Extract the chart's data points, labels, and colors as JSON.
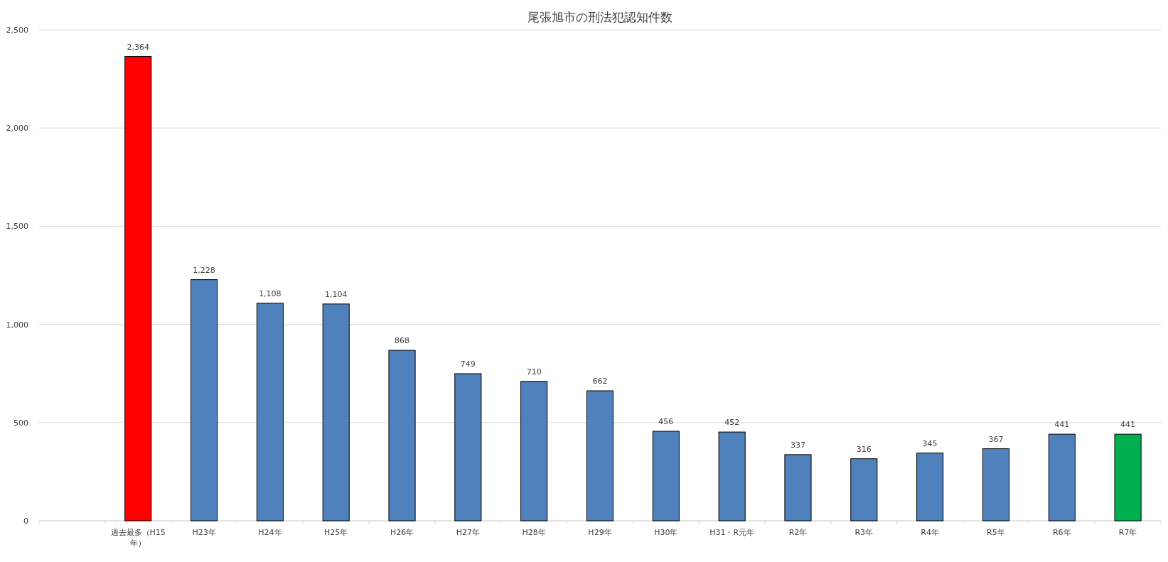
{
  "chart_data": {
    "type": "bar",
    "title": "尾張旭市の刑法犯認知件数",
    "categories": [
      null,
      "過去最多（H15年）",
      "H23年",
      "H24年",
      "H25年",
      "H26年",
      "H27年",
      "H28年",
      "H29年",
      "H30年",
      "H31・R元年",
      "R2年",
      "R3年",
      "R4年",
      "R5年",
      "R6年",
      "R7年"
    ],
    "values": [
      null,
      2364,
      1228,
      1108,
      1104,
      868,
      749,
      710,
      662,
      456,
      452,
      337,
      316,
      345,
      367,
      441,
      441
    ],
    "value_labels": [
      null,
      "2,364",
      "1,228",
      "1,108",
      "1,104",
      "868",
      "749",
      "710",
      "662",
      "456",
      "452",
      "337",
      "316",
      "345",
      "367",
      "441",
      "441"
    ],
    "colors": [
      null,
      "#ff0000",
      "#4f81bd",
      "#4f81bd",
      "#4f81bd",
      "#4f81bd",
      "#4f81bd",
      "#4f81bd",
      "#4f81bd",
      "#4f81bd",
      "#4f81bd",
      "#4f81bd",
      "#4f81bd",
      "#4f81bd",
      "#4f81bd",
      "#4f81bd",
      "#00b050"
    ],
    "ylim": [
      0,
      2500
    ],
    "yticks": [
      {
        "value": 0,
        "label": "0"
      },
      {
        "value": 500,
        "label": "500"
      },
      {
        "value": 1000,
        "label": "1,000"
      },
      {
        "value": 1500,
        "label": "1,500"
      },
      {
        "value": 2000,
        "label": "2,000"
      },
      {
        "value": 2500,
        "label": "2,500"
      }
    ],
    "grid": "y"
  }
}
